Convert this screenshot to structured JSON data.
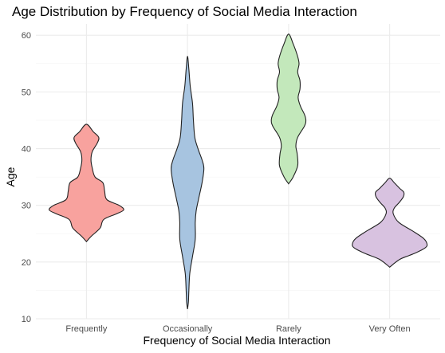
{
  "chart_data": {
    "type": "violin",
    "title": "Age Distribution by Frequency of Social Media Interaction",
    "xlabel": "Frequency of Social Media Interaction",
    "ylabel": "Age",
    "categories": [
      "Frequently",
      "Occasionally",
      "Rarely",
      "Very Often"
    ],
    "ylim": [
      10,
      62
    ],
    "yticks": [
      10,
      20,
      30,
      40,
      50,
      60
    ],
    "grid": true,
    "legend": "none",
    "series": [
      {
        "category": "Frequently",
        "color": "#f8a29e",
        "profile": [
          [
            23.6,
            0
          ],
          [
            24.5,
            0.1
          ],
          [
            26,
            0.3
          ],
          [
            27.5,
            0.38
          ],
          [
            28.5,
            0.66
          ],
          [
            29.2,
            0.82
          ],
          [
            30,
            0.72
          ],
          [
            31,
            0.45
          ],
          [
            32.5,
            0.4
          ],
          [
            34,
            0.36
          ],
          [
            35,
            0.19
          ],
          [
            36.5,
            0.13
          ],
          [
            38,
            0.1
          ],
          [
            39.5,
            0.13
          ],
          [
            41,
            0.24
          ],
          [
            42,
            0.27
          ],
          [
            43,
            0.15
          ],
          [
            44.3,
            0
          ]
        ]
      },
      {
        "category": "Occasionally",
        "color": "#a7c4e0",
        "profile": [
          [
            11.7,
            0
          ],
          [
            13,
            0.02
          ],
          [
            15,
            0.03
          ],
          [
            18,
            0.05
          ],
          [
            21,
            0.11
          ],
          [
            24,
            0.17
          ],
          [
            27,
            0.17
          ],
          [
            29,
            0.19
          ],
          [
            31,
            0.24
          ],
          [
            34,
            0.32
          ],
          [
            36.5,
            0.36
          ],
          [
            38,
            0.32
          ],
          [
            40,
            0.23
          ],
          [
            42,
            0.16
          ],
          [
            45,
            0.13
          ],
          [
            48,
            0.11
          ],
          [
            51,
            0.06
          ],
          [
            54,
            0.03
          ],
          [
            56.3,
            0
          ]
        ]
      },
      {
        "category": "Rarely",
        "color": "#c3e8bb",
        "profile": [
          [
            33.8,
            0
          ],
          [
            35,
            0.1
          ],
          [
            37,
            0.2
          ],
          [
            39,
            0.19
          ],
          [
            40.5,
            0.16
          ],
          [
            42,
            0.2
          ],
          [
            44,
            0.35
          ],
          [
            45,
            0.38
          ],
          [
            46,
            0.35
          ],
          [
            47.5,
            0.26
          ],
          [
            49,
            0.21
          ],
          [
            50.5,
            0.25
          ],
          [
            52,
            0.25
          ],
          [
            53.5,
            0.2
          ],
          [
            55,
            0.23
          ],
          [
            56.5,
            0.19
          ],
          [
            58.5,
            0.1
          ],
          [
            60.2,
            0
          ]
        ]
      },
      {
        "category": "Very Often",
        "color": "#d8c2e0",
        "profile": [
          [
            19.1,
            0
          ],
          [
            20.5,
            0.23
          ],
          [
            21.5,
            0.54
          ],
          [
            22.5,
            0.78
          ],
          [
            23.2,
            0.82
          ],
          [
            24.2,
            0.74
          ],
          [
            25.5,
            0.5
          ],
          [
            27,
            0.2
          ],
          [
            28.5,
            0.08
          ],
          [
            29.5,
            0.1
          ],
          [
            30.5,
            0.21
          ],
          [
            31.5,
            0.3
          ],
          [
            32.3,
            0.31
          ],
          [
            33,
            0.22
          ],
          [
            34,
            0.1
          ],
          [
            34.8,
            0
          ]
        ]
      }
    ]
  }
}
